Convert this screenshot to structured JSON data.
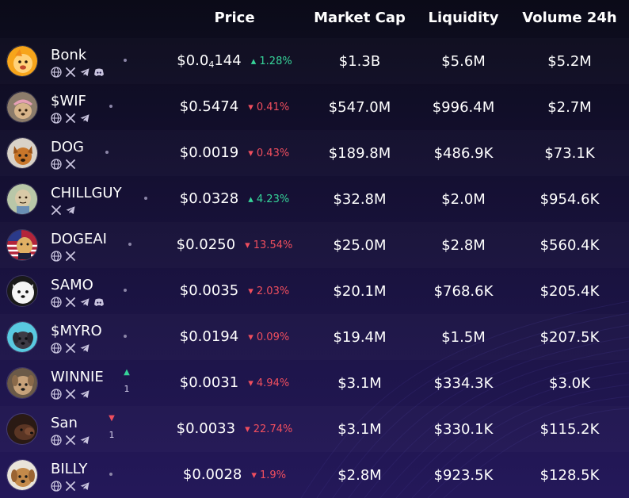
{
  "headers": {
    "price": "Price",
    "market_cap": "Market Cap",
    "liquidity": "Liquidity",
    "volume_24h": "Volume 24h"
  },
  "colors": {
    "up": "#36d399",
    "down": "#f04e5e",
    "background_top": "#0b0b18",
    "background_bottom": "#24185a"
  },
  "tokens": [
    {
      "name": "Bonk",
      "price_main": "$0.0",
      "price_sub": "4",
      "price_tail": "144",
      "change_dir": "up",
      "change": "1.28%",
      "market_cap": "$1.3B",
      "liquidity": "$5.6M",
      "volume": "$5.2M",
      "socials": [
        "globe-icon",
        "x-icon",
        "telegram-icon",
        "discord-icon"
      ],
      "trend": null,
      "avatar": "bonk"
    },
    {
      "name": "$WIF",
      "price_main": "$0.5474",
      "price_sub": "",
      "price_tail": "",
      "change_dir": "down",
      "change": "0.41%",
      "market_cap": "$547.0M",
      "liquidity": "$996.4M",
      "volume": "$2.7M",
      "socials": [
        "globe-icon",
        "x-icon",
        "telegram-icon"
      ],
      "trend": null,
      "avatar": "wif"
    },
    {
      "name": "DOG",
      "price_main": "$0.0019",
      "price_sub": "",
      "price_tail": "",
      "change_dir": "down",
      "change": "0.43%",
      "market_cap": "$189.8M",
      "liquidity": "$486.9K",
      "volume": "$73.1K",
      "socials": [
        "globe-icon",
        "x-icon"
      ],
      "trend": null,
      "avatar": "dog"
    },
    {
      "name": "CHILLGUY",
      "price_main": "$0.0328",
      "price_sub": "",
      "price_tail": "",
      "change_dir": "up",
      "change": "4.23%",
      "market_cap": "$32.8M",
      "liquidity": "$2.0M",
      "volume": "$954.6K",
      "socials": [
        "x-icon",
        "telegram-icon"
      ],
      "trend": null,
      "avatar": "chillguy"
    },
    {
      "name": "DOGEAI",
      "price_main": "$0.0250",
      "price_sub": "",
      "price_tail": "",
      "change_dir": "down",
      "change": "13.54%",
      "market_cap": "$25.0M",
      "liquidity": "$2.8M",
      "volume": "$560.4K",
      "socials": [
        "globe-icon",
        "x-icon"
      ],
      "trend": null,
      "avatar": "dogeai"
    },
    {
      "name": "SAMO",
      "price_main": "$0.0035",
      "price_sub": "",
      "price_tail": "",
      "change_dir": "down",
      "change": "2.03%",
      "market_cap": "$20.1M",
      "liquidity": "$768.6K",
      "volume": "$205.4K",
      "socials": [
        "globe-icon",
        "x-icon",
        "telegram-icon",
        "discord-icon"
      ],
      "trend": null,
      "avatar": "samo"
    },
    {
      "name": "$MYRO",
      "price_main": "$0.0194",
      "price_sub": "",
      "price_tail": "",
      "change_dir": "down",
      "change": "0.09%",
      "market_cap": "$19.4M",
      "liquidity": "$1.5M",
      "volume": "$207.5K",
      "socials": [
        "globe-icon",
        "x-icon",
        "telegram-icon"
      ],
      "trend": null,
      "avatar": "myro"
    },
    {
      "name": "WINNIE",
      "price_main": "$0.0031",
      "price_sub": "",
      "price_tail": "",
      "change_dir": "down",
      "change": "4.94%",
      "market_cap": "$3.1M",
      "liquidity": "$334.3K",
      "volume": "$3.0K",
      "socials": [
        "globe-icon",
        "x-icon",
        "telegram-icon"
      ],
      "trend": {
        "dir": "up",
        "count": "1"
      },
      "avatar": "winnie"
    },
    {
      "name": "San",
      "price_main": "$0.0033",
      "price_sub": "",
      "price_tail": "",
      "change_dir": "down",
      "change": "22.74%",
      "market_cap": "$3.1M",
      "liquidity": "$330.1K",
      "volume": "$115.2K",
      "socials": [
        "globe-icon",
        "x-icon",
        "telegram-icon"
      ],
      "trend": {
        "dir": "down",
        "count": "1"
      },
      "avatar": "san"
    },
    {
      "name": "BILLY",
      "price_main": "$0.0028",
      "price_sub": "",
      "price_tail": "",
      "change_dir": "down",
      "change": "1.9%",
      "market_cap": "$2.8M",
      "liquidity": "$923.5K",
      "volume": "$128.5K",
      "socials": [
        "globe-icon",
        "x-icon",
        "telegram-icon"
      ],
      "trend": null,
      "avatar": "billy"
    }
  ]
}
